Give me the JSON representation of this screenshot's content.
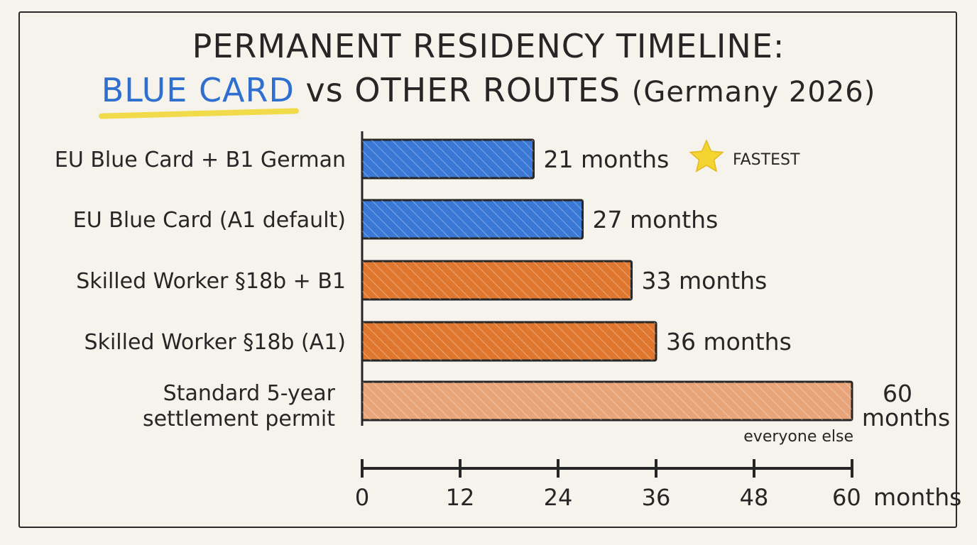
{
  "title_line1": "PERMANENT RESIDENCY TIMELINE:",
  "title_highlight": "BLUE CARD",
  "title_rest": " vs OTHER ROUTES ",
  "title_paren": "(Germany 2026)",
  "colors": {
    "blue": "#3a78d6",
    "orange": "#e0772e",
    "light_orange": "#e9a57a",
    "highlight": "#f2d83a",
    "star": "#f4d431"
  },
  "chart_data": {
    "type": "bar",
    "orientation": "horizontal",
    "categories": [
      "EU Blue Card + B1 German",
      "EU Blue Card (A1 default)",
      "Skilled Worker §18b + B1",
      "Skilled Worker §18b (A1)",
      "Standard 5-year settlement permit"
    ],
    "values": [
      21,
      27,
      33,
      36,
      60
    ],
    "value_labels": [
      "21 months",
      "27 months",
      "33 months",
      "36 months",
      "60 months"
    ],
    "bar_colors": [
      "blue",
      "blue",
      "orange",
      "orange",
      "light_orange"
    ],
    "annotations": [
      {
        "category_index": 0,
        "text": "FASTEST",
        "icon": "star-icon"
      },
      {
        "category_index": 4,
        "text": "everyone else"
      }
    ],
    "x_ticks": [
      0,
      12,
      24,
      36,
      48,
      60
    ],
    "x_unit": "months",
    "xlim": [
      0,
      60
    ]
  }
}
